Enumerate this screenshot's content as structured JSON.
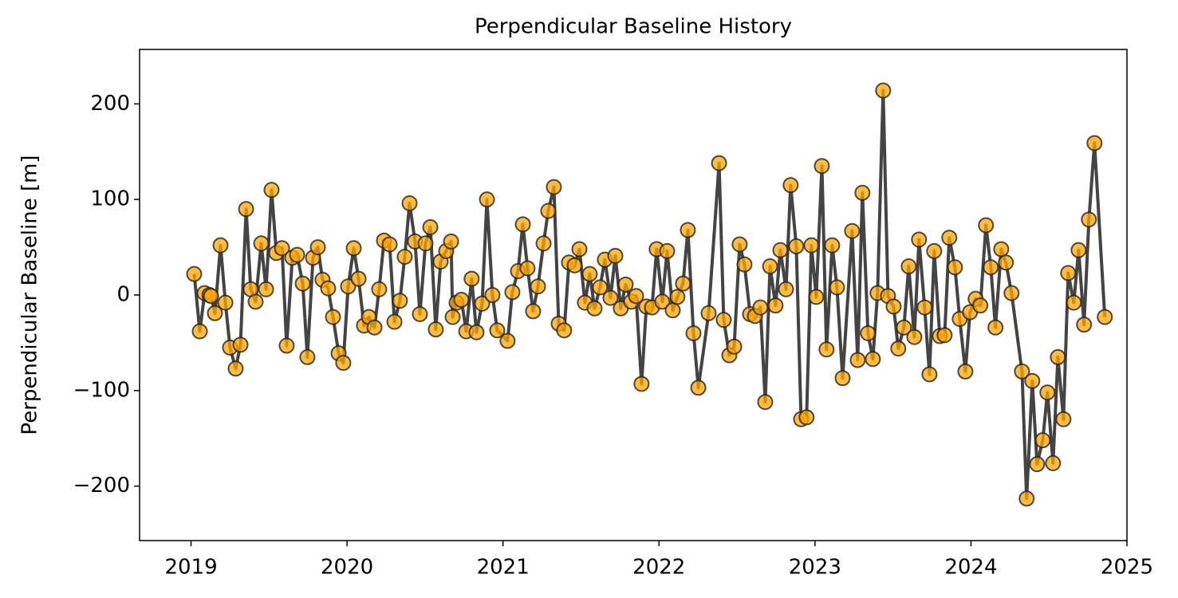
{
  "chart_data": {
    "type": "line",
    "title": "Perpendicular Baseline History",
    "ylabel": "Perpendicular Baseline [m]",
    "x": [
      2019.02,
      2019.056,
      2019.087,
      2019.118,
      2019.128,
      2019.153,
      2019.189,
      2019.22,
      2019.25,
      2019.286,
      2019.317,
      2019.353,
      2019.383,
      2019.414,
      2019.45,
      2019.481,
      2019.516,
      2019.547,
      2019.583,
      2019.613,
      2019.649,
      2019.68,
      2019.716,
      2019.746,
      2019.782,
      2019.813,
      2019.843,
      2019.879,
      2019.91,
      2019.946,
      2019.976,
      2020.007,
      2020.043,
      2020.074,
      2020.109,
      2020.14,
      2020.176,
      2020.206,
      2020.237,
      2020.273,
      2020.304,
      2020.339,
      2020.37,
      2020.401,
      2020.436,
      2020.467,
      2020.503,
      2020.534,
      2020.569,
      2020.6,
      2020.636,
      2020.667,
      2020.677,
      2020.702,
      2020.733,
      2020.764,
      2020.799,
      2020.83,
      2020.866,
      2020.897,
      2020.932,
      2020.963,
      2021.029,
      2021.06,
      2021.096,
      2021.127,
      2021.157,
      2021.193,
      2021.224,
      2021.26,
      2021.29,
      2021.326,
      2021.357,
      2021.392,
      2021.423,
      2021.459,
      2021.49,
      2021.525,
      2021.556,
      2021.587,
      2021.622,
      2021.653,
      2021.689,
      2021.72,
      2021.755,
      2021.786,
      2021.822,
      2021.853,
      2021.888,
      2021.919,
      2021.955,
      2021.985,
      2022.021,
      2022.052,
      2022.088,
      2022.118,
      2022.154,
      2022.185,
      2022.221,
      2022.252,
      2022.318,
      2022.385,
      2022.415,
      2022.451,
      2022.482,
      2022.517,
      2022.548,
      2022.584,
      2022.615,
      2022.65,
      2022.681,
      2022.712,
      2022.747,
      2022.778,
      2022.814,
      2022.844,
      2022.88,
      2022.911,
      2022.946,
      2022.977,
      2023.008,
      2023.044,
      2023.074,
      2023.11,
      2023.141,
      2023.177,
      2023.238,
      2023.274,
      2023.304,
      2023.34,
      2023.371,
      2023.401,
      2023.437,
      2023.468,
      2023.504,
      2023.534,
      2023.57,
      2023.601,
      2023.637,
      2023.667,
      2023.703,
      2023.734,
      2023.764,
      2023.8,
      2023.831,
      2023.861,
      2023.897,
      2023.928,
      2023.964,
      2023.994,
      2024.03,
      2024.06,
      2024.096,
      2024.127,
      2024.157,
      2024.194,
      2024.224,
      2024.26,
      2024.327,
      2024.357,
      2024.393,
      2024.424,
      2024.46,
      2024.49,
      2024.526,
      2024.557,
      2024.593,
      2024.623,
      2024.659,
      2024.69,
      2024.725,
      2024.756,
      2024.792,
      2024.858
    ],
    "values": [
      22,
      -38,
      2,
      0,
      -1,
      -19,
      52,
      -8,
      -55,
      -77,
      -52,
      90,
      6,
      -7,
      54,
      6,
      110,
      44,
      49,
      -53,
      39,
      42,
      12,
      -65,
      39,
      50,
      16,
      7,
      -23,
      -61,
      -71,
      9,
      49,
      17,
      -32,
      -23,
      -34,
      6,
      57,
      53,
      -28,
      -6,
      40,
      96,
      56,
      -20,
      54,
      71,
      -36,
      35,
      46,
      56,
      -23,
      -8,
      -5,
      -38,
      17,
      -39,
      -9,
      100,
      0,
      -37,
      -48,
      3,
      25,
      74,
      28,
      -17,
      9,
      54,
      88,
      113,
      -30,
      -37,
      34,
      31,
      48,
      -8,
      22,
      -14,
      8,
      37,
      -3,
      41,
      -14,
      11,
      -7,
      -1,
      -93,
      -12,
      -13,
      48,
      -7,
      46,
      -16,
      -2,
      12,
      68,
      -40,
      -97,
      -19,
      138,
      -26,
      -63,
      -54,
      53,
      32,
      -20,
      -22,
      -13,
      -112,
      30,
      -11,
      47,
      6,
      115,
      51,
      -130,
      -128,
      52,
      -2,
      135,
      -57,
      52,
      8,
      -87,
      67,
      -68,
      107,
      -40,
      -67,
      2,
      214,
      -1,
      -12,
      -56,
      -34,
      30,
      -44,
      58,
      -13,
      -83,
      46,
      -43,
      -42,
      60,
      29,
      -25,
      -80,
      -18,
      -4,
      -11,
      73,
      29,
      -34,
      48,
      34,
      2,
      -80,
      -213,
      -90,
      -177,
      -152,
      -102,
      -176,
      -65,
      -130,
      23,
      -8,
      47,
      -31,
      79,
      159,
      -23
    ],
    "color": "#ffa500",
    "line_color": "#444444",
    "edge_color": "#222222",
    "xlim": [
      2018.67,
      2025.0
    ],
    "xticks": [
      2019,
      2020,
      2021,
      2022,
      2023,
      2024,
      2025
    ],
    "ylim": [
      -257,
      257
    ],
    "yticks": [
      {
        "value": -200,
        "label": "−200"
      },
      {
        "value": -100,
        "label": "−100"
      },
      0,
      100,
      200
    ]
  }
}
